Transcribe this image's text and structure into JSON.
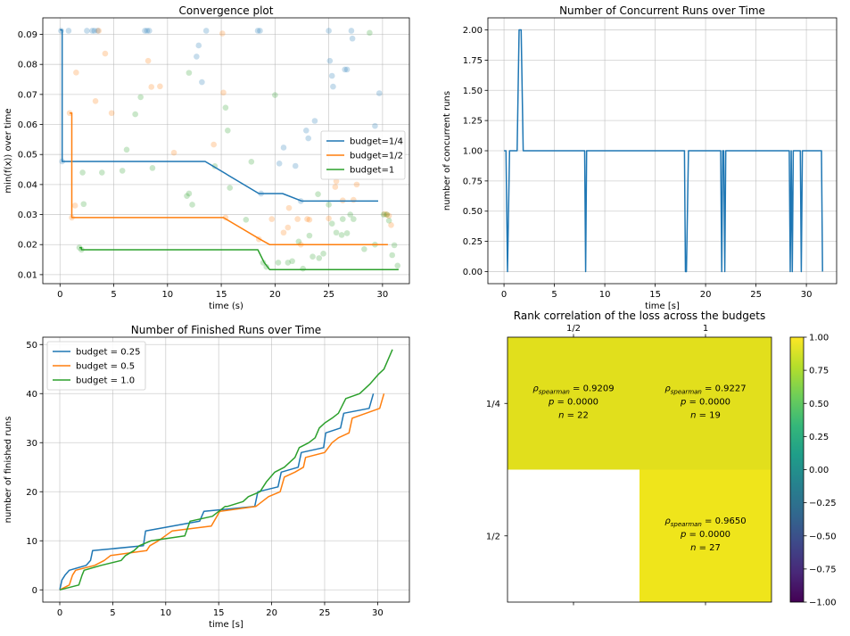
{
  "chart_data": [
    {
      "type": "line",
      "title": "Convergence plot",
      "xlabel": "time (s)",
      "ylabel": "min(f(x)) over time",
      "xlim": [
        -1.6,
        32.5
      ],
      "ylim": [
        0.007,
        0.0955
      ],
      "xticks": [
        0,
        5,
        10,
        15,
        20,
        25,
        30
      ],
      "yticks": [
        0.01,
        0.02,
        0.03,
        0.04,
        0.05,
        0.06,
        0.07,
        0.08,
        0.09
      ],
      "ytick_labels": [
        "0.01",
        "0.02",
        "0.03",
        "0.04",
        "0.05",
        "0.06",
        "0.07",
        "0.08",
        "0.09"
      ],
      "grid": true,
      "legend_position": "center-right",
      "series": [
        {
          "name": "budget=1/4",
          "color": "#1f77b4",
          "x": [
            0.0,
            0.2,
            0.2,
            13.5,
            18.5,
            20.7,
            22.5,
            29.6
          ],
          "y": [
            0.0915,
            0.0915,
            0.0477,
            0.0477,
            0.037,
            0.037,
            0.0345,
            0.0345
          ],
          "points": [
            [
              0.1,
              0.0912
            ],
            [
              0.2,
              0.0477
            ],
            [
              0.8,
              0.0912
            ],
            [
              2.5,
              0.0912
            ],
            [
              3.0,
              0.0912
            ],
            [
              3.2,
              0.0912
            ],
            [
              3.5,
              0.0912
            ],
            [
              7.9,
              0.0912
            ],
            [
              8.1,
              0.0912
            ],
            [
              8.3,
              0.0912
            ],
            [
              12.7,
              0.0826
            ],
            [
              12.9,
              0.0863
            ],
            [
              13.2,
              0.0741
            ],
            [
              13.6,
              0.0912
            ],
            [
              18.4,
              0.0912
            ],
            [
              18.6,
              0.0912
            ],
            [
              18.7,
              0.037
            ],
            [
              20.8,
              0.0523
            ],
            [
              20.4,
              0.047
            ],
            [
              21.9,
              0.0462
            ],
            [
              22.9,
              0.058
            ],
            [
              23.1,
              0.0554
            ],
            [
              23.7,
              0.0612
            ],
            [
              25.0,
              0.0912
            ],
            [
              25.1,
              0.0812
            ],
            [
              25.3,
              0.0762
            ],
            [
              25.4,
              0.0726
            ],
            [
              26.5,
              0.0783
            ],
            [
              26.7,
              0.0783
            ],
            [
              27.1,
              0.0912
            ],
            [
              27.2,
              0.0886
            ],
            [
              29.3,
              0.0595
            ],
            [
              29.7,
              0.0704
            ],
            [
              22.4,
              0.0345
            ]
          ]
        },
        {
          "name": "budget=1/2",
          "color": "#ff7f0e",
          "x": [
            0.9,
            1.1,
            1.1,
            15.2,
            18.6,
            19.5,
            30.5
          ],
          "y": [
            0.0638,
            0.0638,
            0.029,
            0.029,
            0.0218,
            0.02,
            0.02
          ],
          "points": [
            [
              0.9,
              0.0638
            ],
            [
              1.1,
              0.029
            ],
            [
              1.5,
              0.0773
            ],
            [
              1.4,
              0.033
            ],
            [
              3.3,
              0.0678
            ],
            [
              3.6,
              0.0912
            ],
            [
              4.2,
              0.0836
            ],
            [
              4.8,
              0.0638
            ],
            [
              8.2,
              0.0812
            ],
            [
              8.5,
              0.0725
            ],
            [
              9.3,
              0.0727
            ],
            [
              10.6,
              0.0506
            ],
            [
              14.3,
              0.0533
            ],
            [
              15.1,
              0.0903
            ],
            [
              15.2,
              0.0706
            ],
            [
              15.4,
              0.029
            ],
            [
              18.5,
              0.0218
            ],
            [
              19.7,
              0.0285
            ],
            [
              20.8,
              0.024
            ],
            [
              21.2,
              0.0257
            ],
            [
              21.3,
              0.0322
            ],
            [
              22.1,
              0.0285
            ],
            [
              22.4,
              0.02
            ],
            [
              23.0,
              0.0285
            ],
            [
              23.2,
              0.0283
            ],
            [
              25.0,
              0.0287
            ],
            [
              25.6,
              0.0392
            ],
            [
              25.7,
              0.0411
            ],
            [
              26.3,
              0.0347
            ],
            [
              27.3,
              0.0349
            ],
            [
              27.6,
              0.04
            ],
            [
              30.2,
              0.0302
            ],
            [
              30.4,
              0.03
            ],
            [
              30.6,
              0.0296
            ],
            [
              30.8,
              0.0265
            ]
          ]
        },
        {
          "name": "budget=1",
          "color": "#2ca02c",
          "x": [
            1.8,
            2.0,
            2.0,
            18.4,
            19.0,
            19.5,
            31.5
          ],
          "y": [
            0.019,
            0.019,
            0.0183,
            0.0183,
            0.014,
            0.0117,
            0.0117
          ],
          "points": [
            [
              1.8,
              0.019
            ],
            [
              2.0,
              0.0183
            ],
            [
              2.1,
              0.044
            ],
            [
              2.2,
              0.0335
            ],
            [
              3.9,
              0.044
            ],
            [
              5.8,
              0.0446
            ],
            [
              6.2,
              0.0516
            ],
            [
              7.0,
              0.0634
            ],
            [
              7.5,
              0.0691
            ],
            [
              8.6,
              0.0455
            ],
            [
              11.8,
              0.0362
            ],
            [
              12.0,
              0.037
            ],
            [
              12.0,
              0.0772
            ],
            [
              12.3,
              0.0333
            ],
            [
              14.4,
              0.0461
            ],
            [
              15.4,
              0.0656
            ],
            [
              15.6,
              0.058
            ],
            [
              15.8,
              0.0389
            ],
            [
              17.3,
              0.0283
            ],
            [
              17.8,
              0.0476
            ],
            [
              18.9,
              0.014
            ],
            [
              19.2,
              0.0126
            ],
            [
              20.0,
              0.0698
            ],
            [
              20.3,
              0.014
            ],
            [
              21.2,
              0.014
            ],
            [
              21.6,
              0.0145
            ],
            [
              22.2,
              0.021
            ],
            [
              22.6,
              0.012
            ],
            [
              23.2,
              0.023
            ],
            [
              23.5,
              0.016
            ],
            [
              24.0,
              0.0368
            ],
            [
              24.1,
              0.0155
            ],
            [
              24.5,
              0.017
            ],
            [
              25.0,
              0.0333
            ],
            [
              25.3,
              0.027
            ],
            [
              25.7,
              0.024
            ],
            [
              26.2,
              0.0232
            ],
            [
              26.3,
              0.0285
            ],
            [
              26.7,
              0.0238
            ],
            [
              27.0,
              0.03
            ],
            [
              27.3,
              0.0285
            ],
            [
              28.3,
              0.0185
            ],
            [
              28.8,
              0.0905
            ],
            [
              29.3,
              0.02
            ],
            [
              30.1,
              0.03
            ],
            [
              30.4,
              0.03
            ],
            [
              30.6,
              0.028
            ],
            [
              30.9,
              0.0165
            ],
            [
              31.1,
              0.0198
            ],
            [
              31.4,
              0.013
            ]
          ]
        }
      ]
    },
    {
      "type": "line",
      "title": "Number of Concurrent Runs over Time",
      "xlabel": "time [s]",
      "ylabel": "number of concurrent runs",
      "xlim": [
        -1.6,
        33.0
      ],
      "ylim": [
        -0.1,
        2.1
      ],
      "xticks": [
        0,
        5,
        10,
        15,
        20,
        25,
        30
      ],
      "yticks": [
        0,
        0.25,
        0.5,
        0.75,
        1.0,
        1.25,
        1.5,
        1.75,
        2.0
      ],
      "ytick_labels": [
        "0.00",
        "0.25",
        "0.50",
        "0.75",
        "1.00",
        "1.25",
        "1.50",
        "1.75",
        "2.00"
      ],
      "grid": true,
      "series": [
        {
          "name": "",
          "color": "#1f77b4",
          "x": [
            0.0,
            0.2,
            0.35,
            0.55,
            1.3,
            1.5,
            1.7,
            1.9,
            8.0,
            8.1,
            8.2,
            17.9,
            18.0,
            18.1,
            18.3,
            18.4,
            21.5,
            21.6,
            21.7,
            21.8,
            21.9,
            22.0,
            28.3,
            28.4,
            28.5,
            28.6,
            28.7,
            28.8,
            29.4,
            29.5,
            29.6,
            31.5,
            31.6
          ],
          "y": [
            1,
            1,
            0,
            1,
            1,
            2,
            2,
            1,
            1,
            0,
            1,
            1,
            0,
            0,
            1,
            1,
            1,
            0,
            1,
            1,
            0,
            1,
            1,
            0,
            1,
            0,
            1,
            1,
            1,
            0,
            1,
            1,
            0
          ]
        }
      ]
    },
    {
      "type": "line",
      "title": "Number of Finished Runs over Time",
      "xlabel": "time [s]",
      "ylabel": "number of finished runs",
      "xlim": [
        -1.6,
        33.0
      ],
      "ylim": [
        -2.5,
        51.5
      ],
      "xticks": [
        0,
        5,
        10,
        15,
        20,
        25,
        30
      ],
      "yticks": [
        0,
        10,
        20,
        30,
        40,
        50
      ],
      "ytick_labels": [
        "0",
        "10",
        "20",
        "30",
        "40",
        "50"
      ],
      "grid": true,
      "legend_position": "top-left",
      "series": [
        {
          "name": "budget = 0.25",
          "color": "#1f77b4",
          "x": [
            0.0,
            0.2,
            0.5,
            0.9,
            2.5,
            2.9,
            3.1,
            7.9,
            8.1,
            13.2,
            13.6,
            18.4,
            18.7,
            20.6,
            20.9,
            22.5,
            22.8,
            24.9,
            25.1,
            26.5,
            26.8,
            29.2,
            29.6
          ],
          "y": [
            0,
            2,
            3,
            4,
            5,
            6,
            8,
            9,
            12,
            14,
            16,
            17,
            20,
            21,
            24,
            25,
            28,
            29,
            32,
            33,
            36,
            37,
            40
          ]
        },
        {
          "name": "budget = 0.5",
          "color": "#ff7f0e",
          "x": [
            0.0,
            0.9,
            1.2,
            1.5,
            3.3,
            4.2,
            4.8,
            8.2,
            8.5,
            9.3,
            10.6,
            14.3,
            15.1,
            18.5,
            19.7,
            20.8,
            21.2,
            22.2,
            23.0,
            23.2,
            25.0,
            25.7,
            26.3,
            27.3,
            27.6,
            30.2,
            30.6
          ],
          "y": [
            0,
            1,
            3,
            4,
            5,
            6,
            7,
            8,
            9,
            10,
            12,
            13,
            16,
            17,
            19,
            20,
            23,
            24,
            25,
            27,
            28,
            30,
            31,
            32,
            35,
            37,
            40
          ]
        },
        {
          "name": "budget = 1.0",
          "color": "#2ca02c",
          "x": [
            0.0,
            1.8,
            2.1,
            2.3,
            3.9,
            5.8,
            6.2,
            7.0,
            7.5,
            8.6,
            11.8,
            12.3,
            14.4,
            15.6,
            15.8,
            17.3,
            17.8,
            18.9,
            19.5,
            20.3,
            21.2,
            22.2,
            22.6,
            23.5,
            24.1,
            24.5,
            25.0,
            25.7,
            26.3,
            27.0,
            28.3,
            28.8,
            29.3,
            30.1,
            30.6,
            31.4
          ],
          "y": [
            0,
            1,
            3,
            4,
            5,
            6,
            7,
            8,
            9,
            10,
            11,
            14,
            15,
            17,
            17,
            18,
            19,
            20,
            22,
            24,
            25,
            27,
            29,
            30,
            31,
            33,
            34,
            35,
            36,
            39,
            40,
            41,
            42,
            44,
            45,
            49
          ]
        }
      ]
    },
    {
      "type": "heatmap",
      "title": "Rank correlation of the loss across the budgets",
      "x_categories": [
        "1/2",
        "1"
      ],
      "y_categories": [
        "1/4",
        "1/2"
      ],
      "colorbar_range": [
        -1.0,
        1.0
      ],
      "colorbar_ticks": [
        -1.0,
        -0.75,
        -0.5,
        -0.25,
        0.0,
        0.25,
        0.5,
        0.75,
        1.0
      ],
      "colorbar_tick_labels": [
        "−1.00",
        "−0.75",
        "−0.50",
        "−0.25",
        "0.00",
        "0.25",
        "0.50",
        "0.75",
        "1.00"
      ],
      "cells": [
        {
          "row": 0,
          "col": 0,
          "rho": 0.9209,
          "rho_text": "0.9209",
          "p_text": "0.0000",
          "n_text": "22",
          "color": "#e1df1c"
        },
        {
          "row": 0,
          "col": 1,
          "rho": 0.9227,
          "rho_text": "0.9227",
          "p_text": "0.0000",
          "n_text": "19",
          "color": "#e2df1c"
        },
        {
          "row": 1,
          "col": 0,
          "rho": null
        },
        {
          "row": 1,
          "col": 1,
          "rho": 0.965,
          "rho_text": "0.9650",
          "p_text": "0.0000",
          "n_text": "27",
          "color": "#efe51b"
        }
      ]
    }
  ]
}
